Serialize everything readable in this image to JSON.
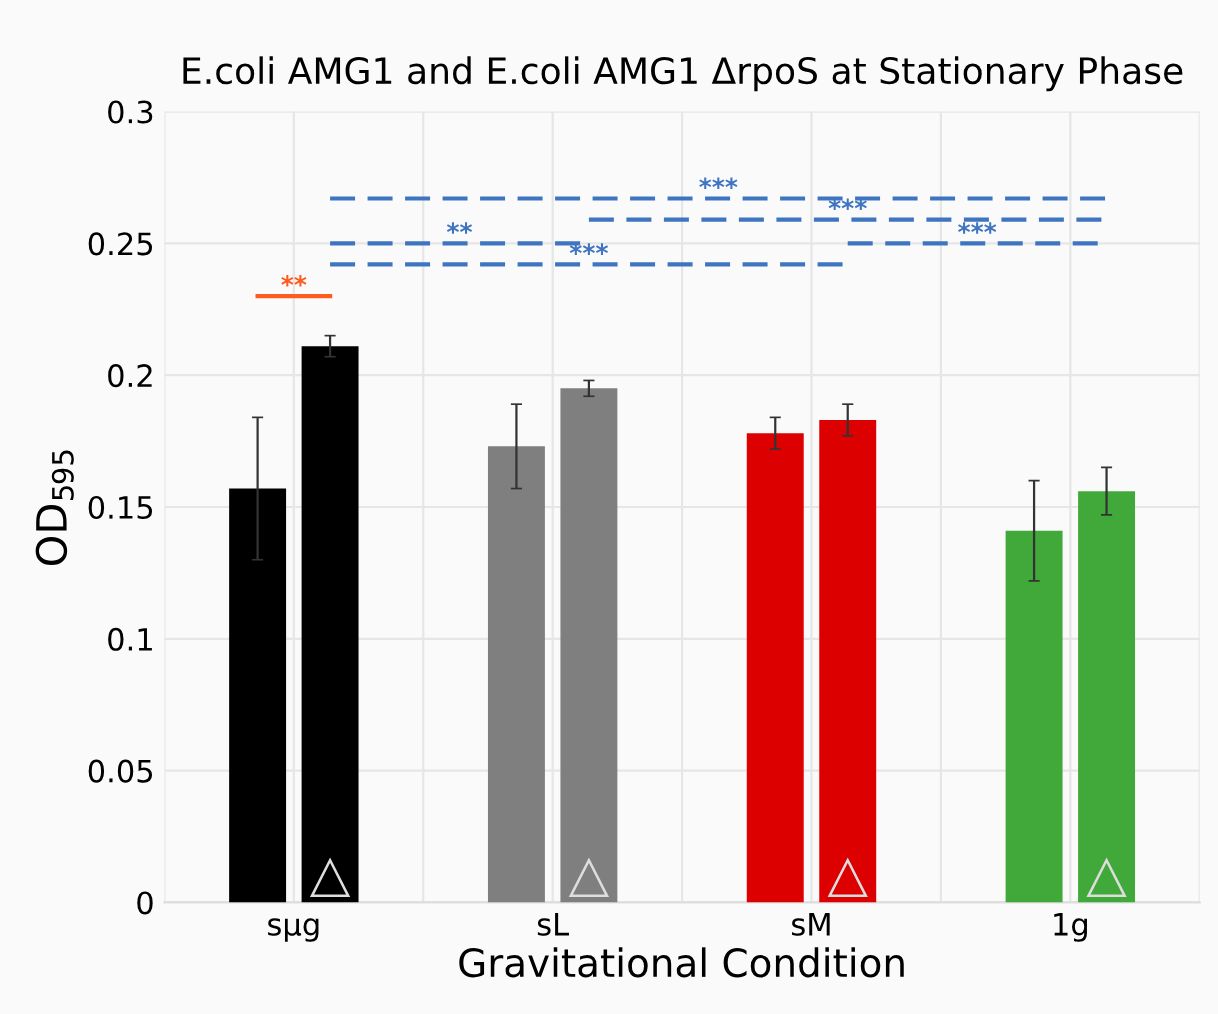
{
  "chart_data": {
    "type": "bar",
    "title": "E.coli AMG1 and E.coli AMG1 ΔrpoS at Stationary Phase",
    "xlabel": "Gravitational Condition",
    "ylabel": "OD$_{595}$",
    "categories": [
      "sμg",
      "sL",
      "sM",
      "1g"
    ],
    "series": [
      {
        "colors": [
          "#000000",
          "#7f7f7f",
          "#dd0000",
          "#41a83a"
        ],
        "values": [
          0.157,
          0.173,
          0.178,
          0.141
        ],
        "errors": [
          0.027,
          0.016,
          0.006,
          0.019
        ]
      },
      {
        "colors": [
          "#000000",
          "#7f7f7f",
          "#dd0000",
          "#41a83a"
        ],
        "values": [
          0.211,
          0.195,
          0.183,
          0.156
        ],
        "errors": [
          0.004,
          0.003,
          0.006,
          0.009
        ]
      }
    ],
    "ylim": [
      0,
      0.3
    ],
    "yticks": [
      0,
      0.05,
      0.1,
      0.15,
      0.2,
      0.25,
      0.3
    ],
    "grid": true,
    "annotations": [
      "**",
      "***",
      "***",
      "**",
      "***",
      "***"
    ]
  }
}
